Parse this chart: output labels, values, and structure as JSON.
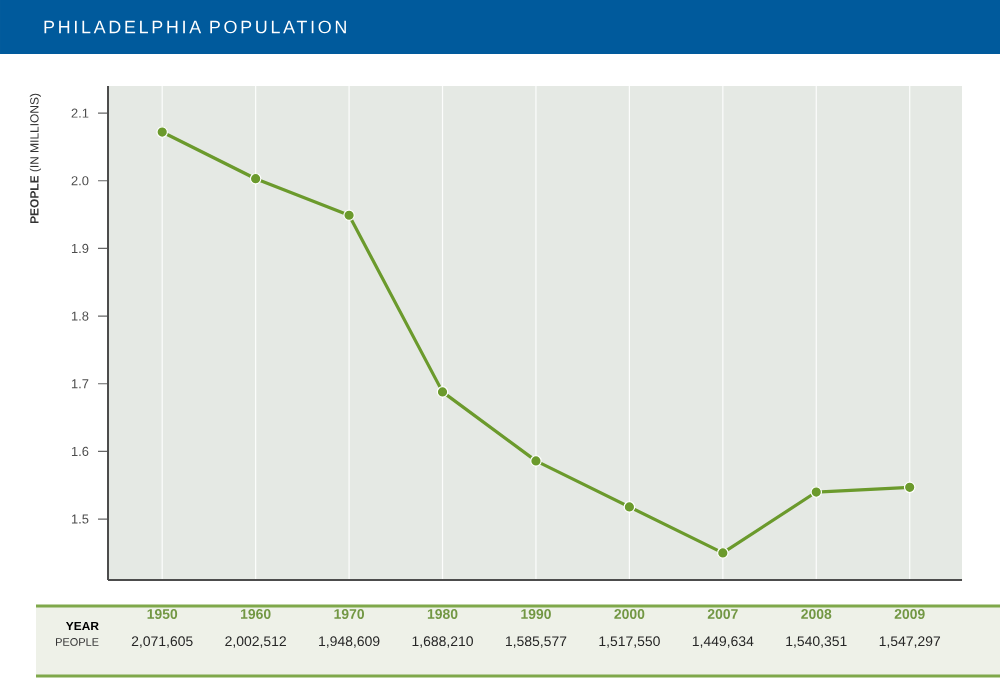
{
  "chart_data": {
    "type": "line",
    "title": "PHILADELPHIA POPULATION",
    "ylabel": "**PEOPLE** (IN MILLIONS)",
    "xlabel": "YEAR",
    "annotations": [
      "PEOPLE",
      "2,071,605",
      "2,002,512",
      "1,948,609",
      "1,688,210",
      "1,585,577",
      "1,517,550",
      "1,449,634",
      "1,540,351",
      "1,547,297"
    ],
    "categories": [
      "1950",
      "1960",
      "1970",
      "1980",
      "1990",
      "2000",
      "2007",
      "2008",
      "2009"
    ],
    "series": [
      {
        "color": "#6b9a2c",
        "values": [
          2.072,
          2.003,
          1.949,
          1.688,
          1.586,
          1.518,
          1.45,
          1.54,
          1.547
        ]
      }
    ],
    "ylim": [
      1.41,
      2.14
    ],
    "yticks": [
      1.5,
      1.6,
      1.7,
      1.8,
      1.9,
      {
        "value": 2.0,
        "label": "2.0"
      },
      2.1
    ],
    "grid": "x",
    "marker": "circle",
    "line_style": "solid"
  }
}
